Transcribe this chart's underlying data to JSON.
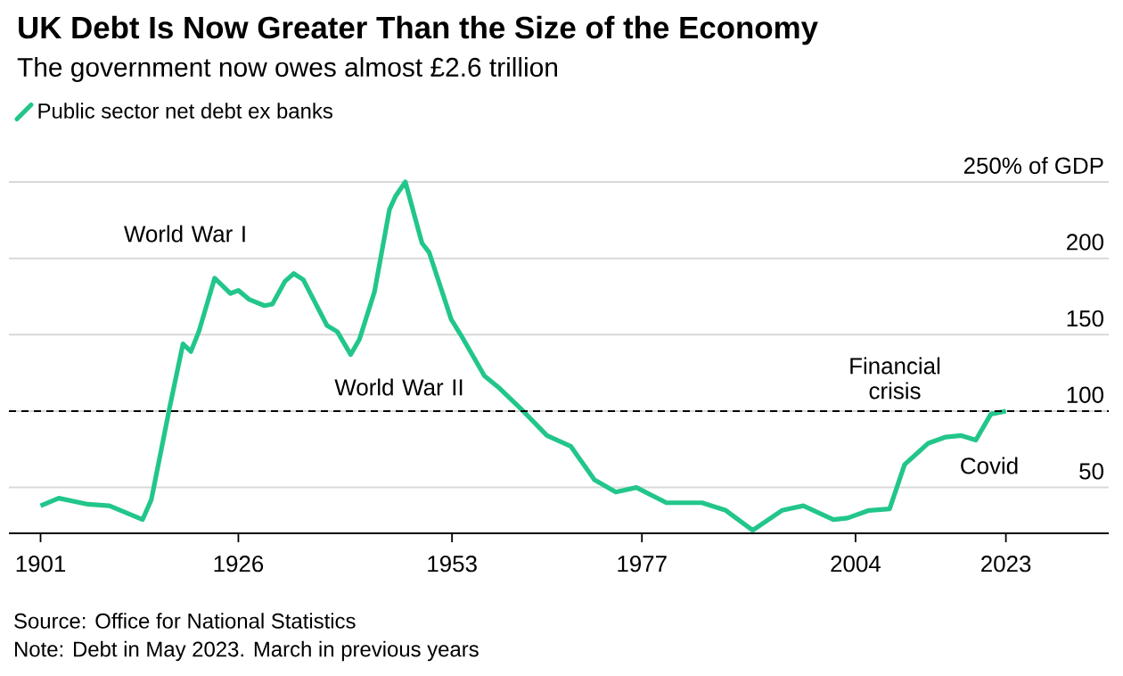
{
  "chart_data": {
    "type": "line",
    "title": "UK Debt Is Now Greater Than the Size of the Economy",
    "subtitle": "The government now owes almost £2.6 trillion",
    "x": [
      1901,
      1903.3,
      1907,
      1909.7,
      1913.9,
      1915,
      1917.3,
      1919,
      1920,
      1921,
      1923,
      1925,
      1926,
      1927.4,
      1929.3,
      1930.3,
      1931.9,
      1933,
      1934.2,
      1937.2,
      1938.5,
      1940.2,
      1941.3,
      1943.2,
      1945.1,
      1945.9,
      1947.1,
      1949.2,
      1950.1,
      1952.9,
      1954.1,
      1957.1,
      1959,
      1962,
      1965,
      1968,
      1971,
      1973.7,
      1976.3,
      1980.1,
      1984.6,
      1987.6,
      1991,
      1994.7,
      1997.4,
      2001.2,
      2003,
      2005.7,
      2008.3,
      2010.2,
      2013.2,
      2015.4,
      2017.3,
      2019.2,
      2021.1,
      2023
    ],
    "series": [
      {
        "name": "Public sector net debt ex banks",
        "color": "#22c68a",
        "values": [
          38,
          43,
          39,
          38,
          29,
          42,
          102,
          144,
          139,
          152,
          187,
          177,
          179,
          173,
          169,
          170,
          185,
          190,
          186,
          156,
          152,
          137,
          147,
          178,
          232,
          241,
          250,
          210,
          204,
          160,
          150,
          123,
          115,
          100,
          84,
          77,
          55,
          47,
          50,
          40,
          40,
          35,
          22,
          35,
          38,
          29,
          30,
          35,
          36,
          65,
          79,
          83,
          84,
          81,
          98,
          100
        ]
      }
    ],
    "xlim": [
      1897,
      2036
    ],
    "ylim": [
      20,
      250
    ],
    "xticks": [
      1901,
      1926,
      1953,
      1977,
      2004,
      2023
    ],
    "yticks": [
      50,
      100,
      150,
      200,
      {
        "value": 250,
        "label": "250% of GDP"
      }
    ],
    "grid": "y",
    "legend": "top left",
    "ref_lines": [
      {
        "axis": "y",
        "value": 100,
        "color": "#000000",
        "line_style": "dashed"
      }
    ],
    "annotations": [
      "World War I",
      "World War II",
      "Financial crisis",
      "Covid",
      "Source: Office for National Statistics",
      "Note: Debt in May 2023. March in previous years"
    ]
  }
}
